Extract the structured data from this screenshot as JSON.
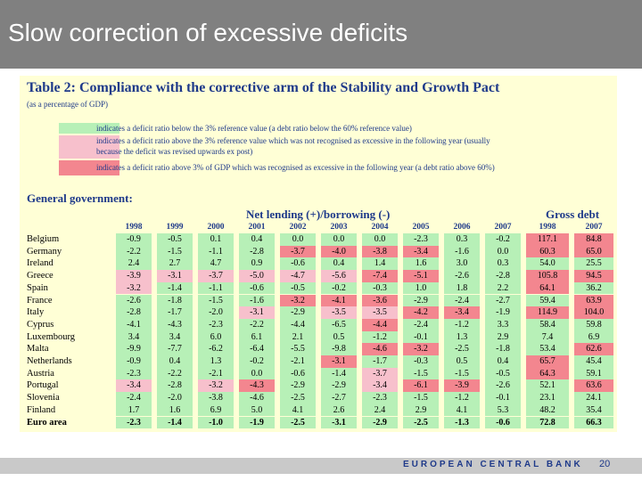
{
  "slide": {
    "title": "Slow correction of excessive deficits",
    "footer_brand": "EUROPEAN CENTRAL BANK",
    "page_number": "20"
  },
  "table": {
    "title": "Table 2: Compliance with the corrective arm of the Stability and Growth Pact",
    "subtitle": "(as a percentage of GDP)",
    "legend": [
      {
        "color": "#b7f0b7",
        "lines": [
          "indicates a deficit ratio below the 3% reference value (a debt ratio below the 60% reference value)"
        ]
      },
      {
        "color": "#f7c0cc",
        "lines": [
          "indicates a deficit ratio above the 3% reference value which was not recognised as excessive in the following year (usually",
          "because the deficit was revised upwards ex post)"
        ]
      },
      {
        "color": "#f3868f",
        "lines": [
          "indicates a deficit ratio above 3% of GDP which was recognised as excessive in the following year (a debt ratio above 60%)"
        ]
      }
    ],
    "section_label": "General government:",
    "net_lending_label": "Net lending (+)/borrowing (-)",
    "gross_debt_label": "Gross debt",
    "years": [
      "1998",
      "1999",
      "2000",
      "2001",
      "2002",
      "2003",
      "2004",
      "2005",
      "2006",
      "2007",
      "1998",
      "2007"
    ],
    "rows": [
      {
        "country": "Belgium",
        "values": [
          "-0.9",
          "-0.5",
          "0.1",
          "0.4",
          "0.0",
          "0.0",
          "0.0",
          "-2.3",
          "0.3",
          "-0.2",
          "117.1",
          "84.8"
        ],
        "colors": [
          "g",
          "g",
          "g",
          "g",
          "g",
          "g",
          "g",
          "g",
          "g",
          "g",
          "r",
          "r"
        ]
      },
      {
        "country": "Germany",
        "values": [
          "-2.2",
          "-1.5",
          "-1.1",
          "-2.8",
          "-3.7",
          "-4.0",
          "-3.8",
          "-3.4",
          "-1.6",
          "0.0",
          "60.3",
          "65.0"
        ],
        "colors": [
          "g",
          "g",
          "g",
          "g",
          "r",
          "r",
          "r",
          "r",
          "g",
          "g",
          "r",
          "r"
        ]
      },
      {
        "country": "Ireland",
        "values": [
          "2.4",
          "2.7",
          "4.7",
          "0.9",
          "-0.6",
          "0.4",
          "1.4",
          "1.6",
          "3.0",
          "0.3",
          "54.0",
          "25.5"
        ],
        "colors": [
          "g",
          "g",
          "g",
          "g",
          "g",
          "g",
          "g",
          "g",
          "g",
          "g",
          "g",
          "g"
        ]
      },
      {
        "country": "Greece",
        "values": [
          "-3.9",
          "-3.1",
          "-3.7",
          "-5.0",
          "-4.7",
          "-5.6",
          "-7.4",
          "-5.1",
          "-2.6",
          "-2.8",
          "105.8",
          "94.5"
        ],
        "colors": [
          "p",
          "p",
          "p",
          "p",
          "p",
          "p",
          "r",
          "r",
          "g",
          "g",
          "r",
          "r"
        ]
      },
      {
        "country": "Spain",
        "values": [
          "-3.2",
          "-1.4",
          "-1.1",
          "-0.6",
          "-0.5",
          "-0.2",
          "-0.3",
          "1.0",
          "1.8",
          "2.2",
          "64.1",
          "36.2"
        ],
        "colors": [
          "p",
          "g",
          "g",
          "g",
          "g",
          "g",
          "g",
          "g",
          "g",
          "g",
          "r",
          "g"
        ]
      },
      {
        "country": "France",
        "values": [
          "-2.6",
          "-1.8",
          "-1.5",
          "-1.6",
          "-3.2",
          "-4.1",
          "-3.6",
          "-2.9",
          "-2.4",
          "-2.7",
          "59.4",
          "63.9"
        ],
        "colors": [
          "g",
          "g",
          "g",
          "g",
          "r",
          "r",
          "r",
          "g",
          "g",
          "g",
          "g",
          "r"
        ]
      },
      {
        "country": "Italy",
        "values": [
          "-2.8",
          "-1.7",
          "-2.0",
          "-3.1",
          "-2.9",
          "-3.5",
          "-3.5",
          "-4.2",
          "-3.4",
          "-1.9",
          "114.9",
          "104.0"
        ],
        "colors": [
          "g",
          "g",
          "g",
          "p",
          "g",
          "p",
          "p",
          "r",
          "r",
          "g",
          "r",
          "r"
        ]
      },
      {
        "country": "Cyprus",
        "values": [
          "-4.1",
          "-4.3",
          "-2.3",
          "-2.2",
          "-4.4",
          "-6.5",
          "-4.4",
          "-2.4",
          "-1.2",
          "3.3",
          "58.4",
          "59.8"
        ],
        "colors": [
          "g",
          "g",
          "g",
          "g",
          "g",
          "g",
          "r",
          "g",
          "g",
          "g",
          "g",
          "g"
        ]
      },
      {
        "country": "Luxembourg",
        "values": [
          "3.4",
          "3.4",
          "6.0",
          "6.1",
          "2.1",
          "0.5",
          "-1.2",
          "-0.1",
          "1.3",
          "2.9",
          "7.4",
          "6.9"
        ],
        "colors": [
          "g",
          "g",
          "g",
          "g",
          "g",
          "g",
          "g",
          "g",
          "g",
          "g",
          "g",
          "g"
        ]
      },
      {
        "country": "Malta",
        "values": [
          "-9.9",
          "-7.7",
          "-6.2",
          "-6.4",
          "-5.5",
          "-9.8",
          "-4.6",
          "-3.2",
          "-2.5",
          "-1.8",
          "53.4",
          "62.6"
        ],
        "colors": [
          "g",
          "g",
          "g",
          "g",
          "g",
          "g",
          "r",
          "r",
          "g",
          "g",
          "g",
          "r"
        ]
      },
      {
        "country": "Netherlands",
        "values": [
          "-0.9",
          "0.4",
          "1.3",
          "-0.2",
          "-2.1",
          "-3.1",
          "-1.7",
          "-0.3",
          "0.5",
          "0.4",
          "65.7",
          "45.4"
        ],
        "colors": [
          "g",
          "g",
          "g",
          "g",
          "g",
          "r",
          "g",
          "g",
          "g",
          "g",
          "r",
          "g"
        ]
      },
      {
        "country": "Austria",
        "values": [
          "-2.3",
          "-2.2",
          "-2.1",
          "0.0",
          "-0.6",
          "-1.4",
          "-3.7",
          "-1.5",
          "-1.5",
          "-0.5",
          "64.3",
          "59.1"
        ],
        "colors": [
          "g",
          "g",
          "g",
          "g",
          "g",
          "g",
          "p",
          "g",
          "g",
          "g",
          "r",
          "g"
        ]
      },
      {
        "country": "Portugal",
        "values": [
          "-3.4",
          "-2.8",
          "-3.2",
          "-4.3",
          "-2.9",
          "-2.9",
          "-3.4",
          "-6.1",
          "-3.9",
          "-2.6",
          "52.1",
          "63.6"
        ],
        "colors": [
          "p",
          "g",
          "p",
          "r",
          "g",
          "g",
          "p",
          "r",
          "r",
          "g",
          "g",
          "r"
        ]
      },
      {
        "country": "Slovenia",
        "values": [
          "-2.4",
          "-2.0",
          "-3.8",
          "-4.6",
          "-2.5",
          "-2.7",
          "-2.3",
          "-1.5",
          "-1.2",
          "-0.1",
          "23.1",
          "24.1"
        ],
        "colors": [
          "g",
          "g",
          "g",
          "g",
          "g",
          "g",
          "g",
          "g",
          "g",
          "g",
          "g",
          "g"
        ]
      },
      {
        "country": "Finland",
        "values": [
          "1.7",
          "1.6",
          "6.9",
          "5.0",
          "4.1",
          "2.6",
          "2.4",
          "2.9",
          "4.1",
          "5.3",
          "48.2",
          "35.4"
        ],
        "colors": [
          "g",
          "g",
          "g",
          "g",
          "g",
          "g",
          "g",
          "g",
          "g",
          "g",
          "g",
          "g"
        ]
      },
      {
        "country": "Euro area",
        "values": [
          "-2.3",
          "-1.4",
          "-1.0",
          "-1.9",
          "-2.5",
          "-3.1",
          "-2.9",
          "-2.5",
          "-1.3",
          "-0.6",
          "72.8",
          "66.3"
        ],
        "colors": [
          "g",
          "g",
          "g",
          "g",
          "g",
          "g",
          "g",
          "g",
          "g",
          "g",
          "g",
          "g"
        ]
      }
    ]
  }
}
